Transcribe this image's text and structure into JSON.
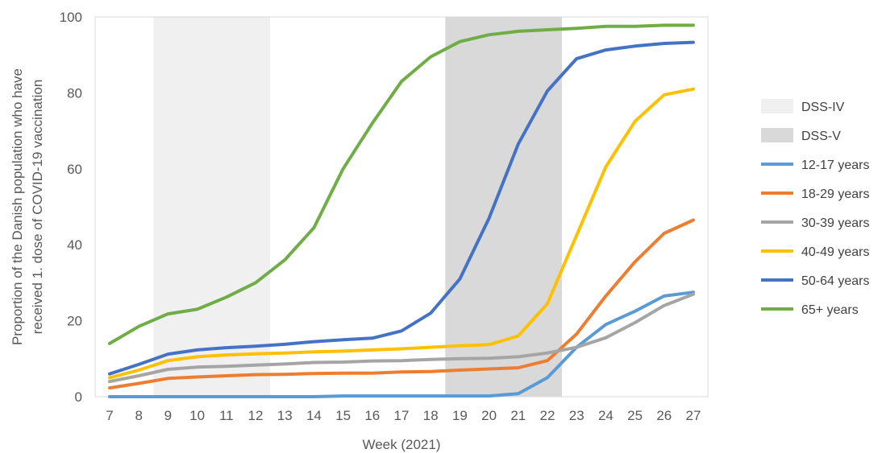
{
  "chart_data": {
    "type": "line",
    "title": "",
    "xlabel": "Week (2021)",
    "ylabel": "Proportion of the Danish population who have received 1. dose of COVID-19 vaccination",
    "ylabel_lines": [
      "Proportion of the Danish population who have",
      "received 1. dose of COVID-19 vaccination"
    ],
    "ylim": [
      0,
      100
    ],
    "yticks": [
      0,
      20,
      40,
      60,
      80,
      100
    ],
    "x": [
      7,
      8,
      9,
      10,
      11,
      12,
      13,
      14,
      15,
      16,
      17,
      18,
      19,
      20,
      21,
      22,
      23,
      24,
      25,
      26,
      27
    ],
    "grid": false,
    "legend_position": "right",
    "shaded_periods": [
      {
        "name": "DSS-IV",
        "from_week": 8.5,
        "to_week": 12.5,
        "color": "#f0f0f0"
      },
      {
        "name": "DSS-V",
        "from_week": 18.5,
        "to_week": 22.5,
        "color": "#d9d9d9"
      }
    ],
    "series": [
      {
        "name": "12-17 years",
        "color": "#5b9bd5",
        "values": [
          0,
          0,
          0,
          0,
          0,
          0,
          0,
          0,
          0.2,
          0.2,
          0.2,
          0.2,
          0.2,
          0.2,
          0.8,
          5,
          13,
          19,
          22.5,
          26.5,
          27.5
        ]
      },
      {
        "name": "18-29 years",
        "color": "#ed7d31",
        "values": [
          2.3,
          3.5,
          4.8,
          5.2,
          5.5,
          5.8,
          5.9,
          6.1,
          6.2,
          6.2,
          6.5,
          6.6,
          7,
          7.3,
          7.6,
          9.5,
          16.5,
          26.5,
          35.5,
          43,
          46.5
        ]
      },
      {
        "name": "30-39 years",
        "color": "#a5a5a5",
        "values": [
          4,
          5.5,
          7.2,
          7.8,
          8,
          8.3,
          8.6,
          9,
          9.1,
          9.4,
          9.5,
          9.8,
          10,
          10.1,
          10.5,
          11.5,
          13,
          15.5,
          19.5,
          24,
          27
        ]
      },
      {
        "name": "40-49 years",
        "color": "#ffc000",
        "values": [
          5,
          7,
          9.5,
          10.5,
          11,
          11.3,
          11.5,
          11.8,
          12,
          12.3,
          12.6,
          13,
          13.4,
          13.7,
          16,
          24.5,
          42.5,
          60.5,
          72.5,
          79.5,
          81
        ]
      },
      {
        "name": "50-64 years",
        "color": "#4472c4",
        "values": [
          6,
          8.5,
          11.2,
          12.3,
          12.9,
          13.3,
          13.8,
          14.5,
          15,
          15.4,
          17.3,
          22,
          31,
          47,
          66.5,
          80.5,
          89,
          91.3,
          92.3,
          93,
          93.3
        ]
      },
      {
        "name": "65+ years",
        "color": "#70ad47",
        "values": [
          14,
          18.5,
          21.8,
          23,
          26.2,
          30,
          36,
          44.5,
          60,
          72,
          83,
          89.5,
          93.5,
          95.3,
          96.2,
          96.6,
          97,
          97.5,
          97.5,
          97.8,
          97.8
        ]
      }
    ]
  }
}
